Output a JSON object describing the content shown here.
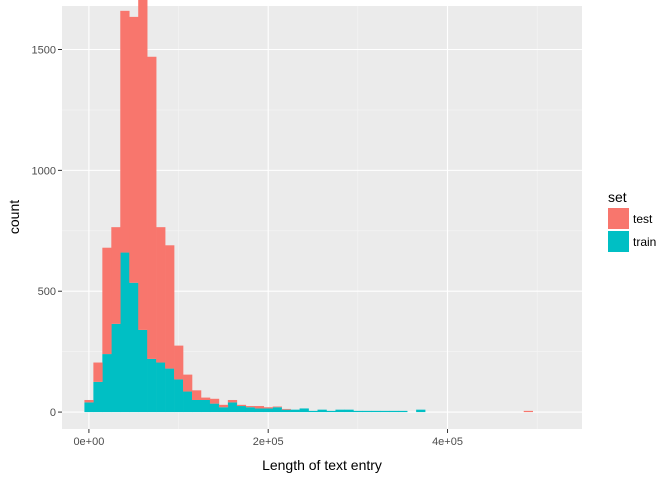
{
  "chart_data": {
    "type": "bar",
    "subtype": "stacked-histogram",
    "xlabel": "Length of text entry",
    "ylabel": "count",
    "xlim": [
      -30000,
      550000
    ],
    "ylim": [
      -70,
      1680
    ],
    "xticks": [
      0,
      200000,
      400000
    ],
    "xtick_labels": [
      "0e+00",
      "2e+05",
      "4e+05"
    ],
    "yticks": [
      0,
      500,
      1000,
      1500
    ],
    "ytick_labels": [
      "0",
      "500",
      "1000",
      "1500"
    ],
    "bin_width": 10000,
    "grid": true,
    "legend": {
      "title": "set",
      "position": "right"
    },
    "series": [
      {
        "name": "test",
        "color": "#F8766D",
        "x": [
          0,
          10000,
          20000,
          30000,
          40000,
          50000,
          60000,
          70000,
          80000,
          90000,
          100000,
          110000,
          120000,
          130000,
          140000,
          150000,
          160000,
          170000,
          180000,
          190000,
          200000,
          210000,
          220000,
          490000
        ],
        "values": [
          10,
          80,
          440,
          400,
          1000,
          1100,
          1370,
          1250,
          560,
          510,
          140,
          70,
          40,
          10,
          20,
          10,
          10,
          5,
          5,
          10,
          5,
          3,
          3,
          5
        ]
      },
      {
        "name": "train",
        "color": "#00BFC4",
        "x": [
          0,
          10000,
          20000,
          30000,
          40000,
          50000,
          60000,
          70000,
          80000,
          90000,
          100000,
          110000,
          120000,
          130000,
          140000,
          150000,
          160000,
          170000,
          180000,
          190000,
          200000,
          210000,
          220000,
          230000,
          240000,
          250000,
          260000,
          270000,
          280000,
          290000,
          300000,
          310000,
          320000,
          330000,
          340000,
          350000,
          370000
        ],
        "values": [
          40,
          125,
          240,
          365,
          660,
          535,
          340,
          220,
          205,
          180,
          135,
          85,
          50,
          50,
          35,
          20,
          40,
          25,
          20,
          15,
          15,
          20,
          10,
          10,
          15,
          5,
          10,
          5,
          10,
          10,
          5,
          5,
          5,
          5,
          5,
          5,
          10
        ]
      }
    ]
  }
}
